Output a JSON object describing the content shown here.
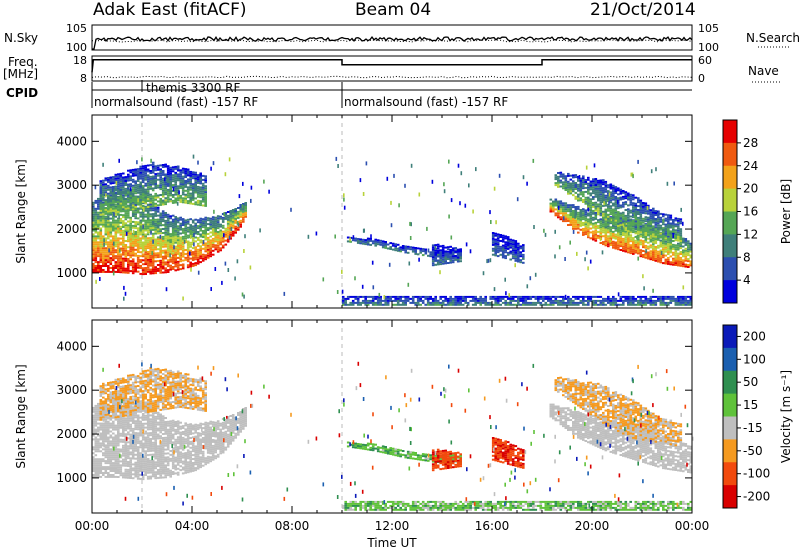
{
  "header": {
    "station": "Adak East (fitACF)",
    "beam": "Beam 04",
    "date": "21/Oct/2014"
  },
  "labels": {
    "nsky": "N.Sky",
    "nsearch": "N.Search",
    "freq_line1": "Freq.",
    "freq_line2": "[MHz]",
    "nave": "Nave",
    "cpid": "CPID"
  },
  "chart_data": [
    {
      "type": "line",
      "panel": "noise",
      "y_ticks_left": [
        "10^5",
        "10^0"
      ],
      "y_ticks_right": [
        "10^5",
        "10^0"
      ],
      "series": [
        {
          "name": "N.Sky",
          "style": "solid"
        },
        {
          "name": "N.Search",
          "style": "dotted"
        }
      ],
      "x_range_hours": [
        0,
        24
      ]
    },
    {
      "type": "line",
      "panel": "frequency",
      "y_ticks_left": [
        "18",
        "8"
      ],
      "y_ticks_right": [
        "60",
        "0"
      ],
      "series": [
        {
          "name": "Freq.",
          "unit": "MHz",
          "points": [
            [
              0,
              11.5
            ],
            [
              0.05,
              16.5
            ],
            [
              10.0,
              16.5
            ],
            [
              10.0,
              14.5
            ],
            [
              18.0,
              14.5
            ],
            [
              18.0,
              16.5
            ],
            [
              24.0,
              16.5
            ]
          ]
        },
        {
          "name": "Nave",
          "style": "dotted"
        }
      ]
    },
    {
      "type": "table",
      "panel": "cpid",
      "segments": [
        {
          "start": 0.0,
          "end": 10.0,
          "text": "normalsound (fast) -157 RF"
        },
        {
          "start": 2.0,
          "end": 10.0,
          "text": "themis 3300 RF"
        },
        {
          "start": 10.0,
          "end": 24.0,
          "text": "normalsound (fast) -157 RF"
        }
      ]
    },
    {
      "type": "heatmap",
      "panel": "power",
      "ylabel": "Slant Range [km]",
      "ylim": [
        200,
        4600
      ],
      "y_ticks": [
        1000,
        2000,
        3000,
        4000
      ],
      "colorbar": {
        "label": "Power [dB]",
        "ticks": [
          4,
          8,
          12,
          16,
          20,
          24,
          28
        ],
        "range": [
          0,
          32
        ]
      },
      "regions": [
        {
          "t0": 0.0,
          "t1": 6.2,
          "r_inner": [
            1000,
            1000,
            950,
            1000,
            1150,
            1500,
            2200
          ],
          "r_outer": [
            2600,
            2900,
            2700,
            2300,
            2200,
            2300,
            2600
          ],
          "peak": 30
        },
        {
          "t0": 0.3,
          "t1": 4.6,
          "r_inner": [
            2300,
            2400,
            2500,
            2600,
            2500
          ],
          "r_outer": [
            3100,
            3300,
            3500,
            3400,
            3200
          ],
          "peak": 16
        },
        {
          "t0": 10.2,
          "t1": 14.8,
          "r_inner": [
            1700,
            1600,
            1450,
            1350,
            1300
          ],
          "r_outer": [
            1800,
            1750,
            1600,
            1500,
            1500
          ],
          "peak": 10
        },
        {
          "t0": 13.6,
          "t1": 14.8,
          "r_inner": [
            1150,
            1200,
            1250
          ],
          "r_outer": [
            1650,
            1600,
            1550
          ],
          "peak": 8
        },
        {
          "t0": 16.0,
          "t1": 17.3,
          "r_inner": [
            1400,
            1300,
            1200
          ],
          "r_outer": [
            1900,
            1800,
            1600
          ],
          "peak": 8
        },
        {
          "t0": 18.3,
          "t1": 24.0,
          "r_inner": [
            2400,
            1900,
            1600,
            1400,
            1200,
            1100
          ],
          "r_outer": [
            2700,
            2500,
            2300,
            2200,
            2000,
            1700
          ],
          "peak": 28
        },
        {
          "t0": 18.5,
          "t1": 23.6,
          "r_inner": [
            3000,
            2600,
            2200,
            1900,
            1800,
            1700
          ],
          "r_outer": [
            3300,
            3200,
            3100,
            2800,
            2400,
            2200
          ],
          "peak": 16
        },
        {
          "t0": 10.0,
          "t1": 24.0,
          "r_inner": [
            250,
            250
          ],
          "r_outer": [
            450,
            450
          ],
          "peak": 10
        }
      ]
    },
    {
      "type": "heatmap",
      "panel": "velocity",
      "xlabel": "Time UT",
      "ylabel": "Slant Range [km]",
      "ylim": [
        200,
        4600
      ],
      "y_ticks": [
        1000,
        2000,
        3000,
        4000
      ],
      "x_ticks": [
        "00:00",
        "04:00",
        "08:00",
        "12:00",
        "16:00",
        "20:00",
        "00:00"
      ],
      "x_tick_hours": [
        0,
        4,
        8,
        12,
        16,
        20,
        24
      ],
      "colorbar": {
        "label": "Velocity [m s⁻¹]",
        "ticks": [
          200,
          100,
          50,
          15,
          -15,
          -50,
          -100,
          -200
        ],
        "range": [
          -250,
          250
        ]
      },
      "regions": [
        {
          "t0": 0.0,
          "t1": 6.2,
          "r_inner": [
            1000,
            1000,
            950,
            1000,
            1150,
            1500,
            2200
          ],
          "r_outer": [
            2600,
            2900,
            2700,
            2300,
            2200,
            2300,
            2600
          ],
          "value": 0
        },
        {
          "t0": 0.3,
          "t1": 4.6,
          "r_inner": [
            2300,
            2400,
            2500,
            2600,
            2500
          ],
          "r_outer": [
            3100,
            3300,
            3500,
            3400,
            3200
          ],
          "value": -20
        },
        {
          "t0": 10.2,
          "t1": 14.8,
          "r_inner": [
            1700,
            1600,
            1450,
            1350,
            1300
          ],
          "r_outer": [
            1800,
            1750,
            1600,
            1500,
            1500
          ],
          "value": 40
        },
        {
          "t0": 13.6,
          "t1": 14.8,
          "r_inner": [
            1150,
            1200,
            1250
          ],
          "r_outer": [
            1650,
            1600,
            1550
          ],
          "value": -80
        },
        {
          "t0": 16.0,
          "t1": 17.3,
          "r_inner": [
            1400,
            1300,
            1200
          ],
          "r_outer": [
            1900,
            1800,
            1600
          ],
          "value": -90
        },
        {
          "t0": 18.3,
          "t1": 24.0,
          "r_inner": [
            2400,
            1900,
            1600,
            1400,
            1200,
            1100
          ],
          "r_outer": [
            2700,
            2500,
            2300,
            2200,
            2000,
            1700
          ],
          "value": 0
        },
        {
          "t0": 18.5,
          "t1": 23.6,
          "r_inner": [
            3000,
            2600,
            2200,
            1900,
            1800,
            1700
          ],
          "r_outer": [
            3300,
            3200,
            3100,
            2800,
            2400,
            2200
          ],
          "value": -20
        },
        {
          "t0": 10.0,
          "t1": 24.0,
          "r_inner": [
            250,
            250
          ],
          "r_outer": [
            450,
            450
          ],
          "value": 30
        }
      ]
    }
  ],
  "colors": {
    "power_scale": [
      "#0000dd",
      "#2c4fb0",
      "#3f7f7a",
      "#55a655",
      "#b8d23a",
      "#f3a21a",
      "#f05a10",
      "#e60000"
    ],
    "velocity_scale": [
      "#d90000",
      "#f24a0d",
      "#f59a20",
      "#bfbfbf",
      "#5fc23a",
      "#2f8f50",
      "#1a5fb0",
      "#0a1ab8"
    ]
  }
}
